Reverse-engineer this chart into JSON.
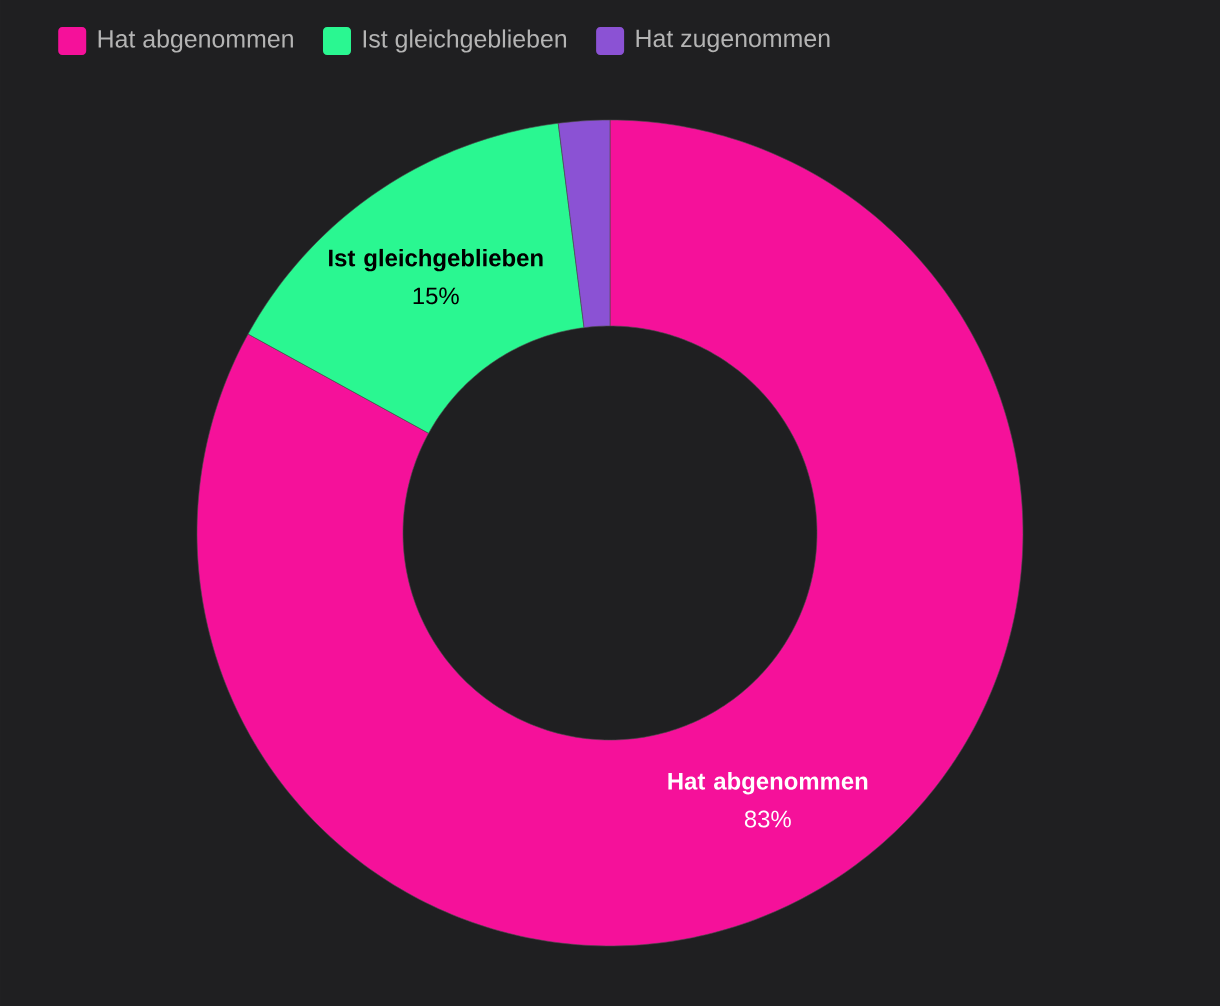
{
  "chart_data": {
    "type": "donut",
    "categories": [
      "Hat abgenommen",
      "Ist gleichgeblieben",
      "Hat zugenommen"
    ],
    "values": [
      83,
      15,
      2
    ],
    "colors": [
      "#f5119a",
      "#2af791",
      "#8b52d4"
    ],
    "value_labels": [
      "83%",
      "15%",
      null
    ],
    "legend": "top left"
  }
}
